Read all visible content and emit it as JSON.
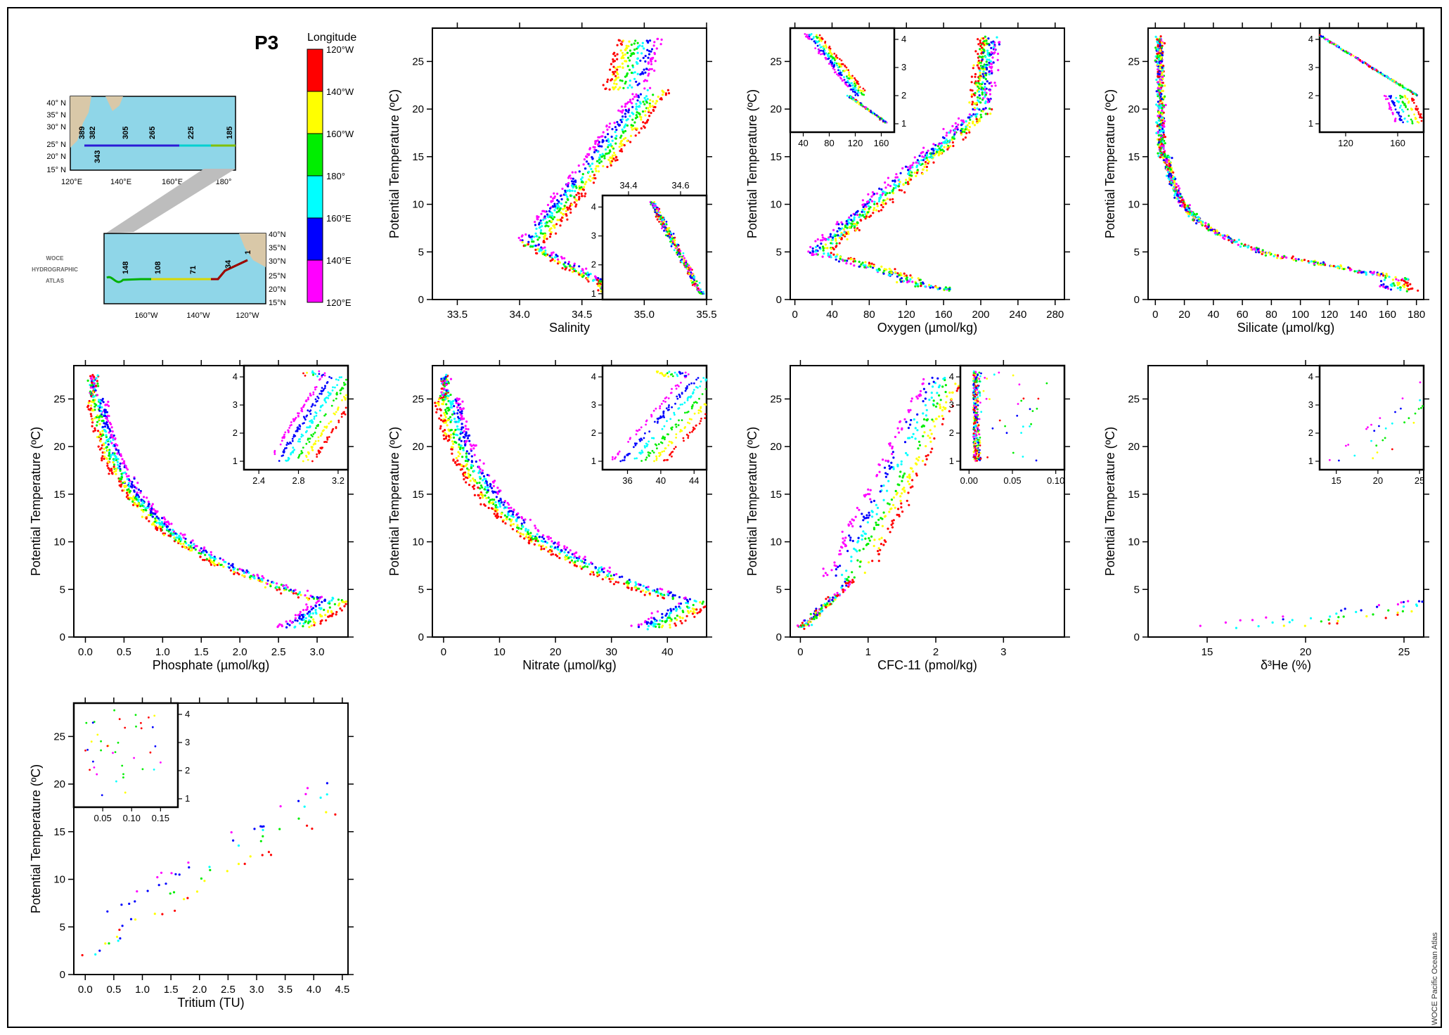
{
  "section_label": "P3",
  "colorbar": {
    "title": "Longitude",
    "ticks": [
      "120°W",
      "140°W",
      "160°W",
      "180°",
      "160°E",
      "140°E",
      "120°E"
    ],
    "colors": [
      "#ff0000",
      "#ffff00",
      "#00ee00",
      "#00ffff",
      "#0000ff",
      "#ff00ff"
    ]
  },
  "maps": {
    "upper": {
      "lat_labels": [
        "40° N",
        "35° N",
        "30° N",
        "25° N",
        "20° N",
        "15° N"
      ],
      "lon_labels": [
        "120°E",
        "140°E",
        "160°E",
        "180°"
      ],
      "stations": [
        "389",
        "382",
        "343",
        "305",
        "265",
        "225",
        "185"
      ]
    },
    "lower": {
      "lat_labels": [
        "40°N",
        "35°N",
        "30°N",
        "25°N",
        "20°N",
        "15°N"
      ],
      "lon_labels": [
        "160°W",
        "140°W",
        "120°W"
      ],
      "stations": [
        "148",
        "108",
        "71",
        "34",
        "1"
      ]
    },
    "atlas_logo": [
      "WOCE",
      "HYDROGRAPHIC",
      "ATLAS"
    ]
  },
  "credit": "WOCE Pacific Ocean Atlas",
  "chart_data": [
    {
      "type": "scatter",
      "id": "salinity",
      "xlabel": "Salinity",
      "ylabel": "Potential Temperature (ºC)",
      "xlim": [
        33.3,
        35.5
      ],
      "ylim": [
        0,
        28.5
      ],
      "xticks": [
        "33.5",
        "34.0",
        "34.5",
        "35.0",
        "35.5"
      ],
      "xtick_vals": [
        33.5,
        34.0,
        34.5,
        35.0,
        35.5
      ],
      "yticks": [
        0,
        5,
        10,
        15,
        20,
        25
      ],
      "inset": {
        "position": "bottom-right",
        "xlim": [
          34.3,
          34.7
        ],
        "ylim": [
          0.8,
          4.4
        ],
        "xticks": [
          "34.4",
          "34.6"
        ],
        "xtick_vals": [
          34.4,
          34.6
        ],
        "xtick_side": "top",
        "yticks": [
          1,
          2,
          3,
          4
        ],
        "ytick_side": "left"
      }
    },
    {
      "type": "scatter",
      "id": "oxygen",
      "xlabel": "Oxygen (µmol/kg)",
      "ylabel": "Potential Temperature (ºC)",
      "xlim": [
        -5,
        290
      ],
      "ylim": [
        0,
        28.5
      ],
      "xticks": [
        "0",
        "40",
        "80",
        "120",
        "160",
        "200",
        "240",
        "280"
      ],
      "xtick_vals": [
        0,
        40,
        80,
        120,
        160,
        200,
        240,
        280
      ],
      "yticks": [
        0,
        5,
        10,
        15,
        20,
        25
      ],
      "inset": {
        "position": "top-left",
        "xlim": [
          20,
          180
        ],
        "ylim": [
          0.7,
          4.4
        ],
        "xticks": [
          "40",
          "80",
          "120",
          "160"
        ],
        "xtick_vals": [
          40,
          80,
          120,
          160
        ],
        "xtick_side": "bottom",
        "yticks": [
          1,
          2,
          3,
          4
        ],
        "ytick_side": "right"
      }
    },
    {
      "type": "scatter",
      "id": "silicate",
      "xlabel": "Silicate (µmol/kg)",
      "ylabel": "Potential Temperature (ºC)",
      "xlim": [
        -5,
        185
      ],
      "ylim": [
        0,
        28.5
      ],
      "xticks": [
        "0",
        "20",
        "40",
        "60",
        "80",
        "100",
        "120",
        "140",
        "160",
        "180"
      ],
      "xtick_vals": [
        0,
        20,
        40,
        60,
        80,
        100,
        120,
        140,
        160,
        180
      ],
      "yticks": [
        0,
        5,
        10,
        15,
        20,
        25
      ],
      "inset": {
        "position": "top-right",
        "xlim": [
          100,
          180
        ],
        "ylim": [
          0.7,
          4.4
        ],
        "xticks": [
          "120",
          "160"
        ],
        "xtick_vals": [
          120,
          160
        ],
        "xtick_side": "bottom",
        "yticks": [
          1,
          2,
          3,
          4
        ],
        "ytick_side": "left"
      }
    },
    {
      "type": "scatter",
      "id": "phosphate",
      "xlabel": "Phosphate (µmol/kg)",
      "ylabel": "Potential Temperature (ºC)",
      "xlim": [
        -0.15,
        3.4
      ],
      "ylim": [
        0,
        28.5
      ],
      "xticks": [
        "0.0",
        "0.5",
        "1.0",
        "1.5",
        "2.0",
        "2.5",
        "3.0"
      ],
      "xtick_vals": [
        0,
        0.5,
        1.0,
        1.5,
        2.0,
        2.5,
        3.0
      ],
      "yticks": [
        0,
        5,
        10,
        15,
        20,
        25
      ],
      "inset": {
        "position": "top-right",
        "xlim": [
          2.25,
          3.3
        ],
        "ylim": [
          0.7,
          4.4
        ],
        "xticks": [
          "2.4",
          "2.8",
          "3.2"
        ],
        "xtick_vals": [
          2.4,
          2.8,
          3.2
        ],
        "xtick_side": "bottom",
        "yticks": [
          1,
          2,
          3,
          4
        ],
        "ytick_side": "left"
      }
    },
    {
      "type": "scatter",
      "id": "nitrate",
      "xlabel": "Nitrate (µmol/kg)",
      "ylabel": "Potential Temperature (ºC)",
      "xlim": [
        -2,
        47
      ],
      "ylim": [
        0,
        28.5
      ],
      "xticks": [
        "0",
        "10",
        "20",
        "30",
        "40"
      ],
      "xtick_vals": [
        0,
        10,
        20,
        30,
        40
      ],
      "yticks": [
        0,
        5,
        10,
        15,
        20,
        25
      ],
      "inset": {
        "position": "top-right",
        "xlim": [
          33,
          45.5
        ],
        "ylim": [
          0.7,
          4.4
        ],
        "xticks": [
          "36",
          "40",
          "44"
        ],
        "xtick_vals": [
          36,
          40,
          44
        ],
        "xtick_side": "bottom",
        "yticks": [
          1,
          2,
          3,
          4
        ],
        "ytick_side": "left"
      }
    },
    {
      "type": "scatter",
      "id": "cfc11",
      "xlabel": "CFC-11 (pmol/kg)",
      "ylabel": "Potential Temperature (ºC)",
      "xlim": [
        -0.15,
        3.9
      ],
      "ylim": [
        0,
        28.5
      ],
      "xticks": [
        "0",
        "1",
        "2",
        "3"
      ],
      "xtick_vals": [
        0,
        1,
        2,
        3
      ],
      "yticks": [
        0,
        5,
        10,
        15,
        20,
        25
      ],
      "inset": {
        "position": "top-right",
        "xlim": [
          -0.01,
          0.11
        ],
        "ylim": [
          0.7,
          4.4
        ],
        "xticks": [
          "0.00",
          "0.05",
          "0.10"
        ],
        "xtick_vals": [
          0,
          0.05,
          0.1
        ],
        "xtick_side": "bottom",
        "yticks": [
          1,
          2,
          3,
          4
        ],
        "ytick_side": "left"
      }
    },
    {
      "type": "scatter",
      "id": "helium",
      "xlabel": "δ³He (%)",
      "ylabel": "Potential Temperature (ºC)",
      "xlim": [
        12,
        26
      ],
      "ylim": [
        0,
        28.5
      ],
      "xticks": [
        "15",
        "20",
        "25"
      ],
      "xtick_vals": [
        15,
        20,
        25
      ],
      "yticks": [
        0,
        5,
        10,
        15,
        20,
        25
      ],
      "inset": {
        "position": "top-right",
        "xlim": [
          13,
          25.5
        ],
        "ylim": [
          0.7,
          4.4
        ],
        "xticks": [
          "15",
          "20",
          "25"
        ],
        "xtick_vals": [
          15,
          20,
          25
        ],
        "xtick_side": "bottom",
        "yticks": [
          1,
          2,
          3,
          4
        ],
        "ytick_side": "left"
      }
    },
    {
      "type": "scatter",
      "id": "tritium",
      "xlabel": "Tritium (TU)",
      "ylabel": "Potential Temperature (ºC)",
      "xlim": [
        -0.2,
        4.6
      ],
      "ylim": [
        0,
        28.5
      ],
      "xticks": [
        "0.0",
        "0.5",
        "1.0",
        "1.5",
        "2.0",
        "2.5",
        "3.0",
        "3.5",
        "4.0",
        "4.5"
      ],
      "xtick_vals": [
        0,
        0.5,
        1.0,
        1.5,
        2.0,
        2.5,
        3.0,
        3.5,
        4.0,
        4.5
      ],
      "yticks": [
        0,
        5,
        10,
        15,
        20,
        25
      ],
      "inset": {
        "position": "top-left",
        "xlim": [
          0.0,
          0.18
        ],
        "ylim": [
          0.7,
          4.4
        ],
        "xticks": [
          "0.05",
          "0.10",
          "0.15"
        ],
        "xtick_vals": [
          0.05,
          0.1,
          0.15
        ],
        "xtick_side": "bottom",
        "yticks": [
          1,
          2,
          3,
          4
        ],
        "ytick_side": "right"
      }
    }
  ]
}
